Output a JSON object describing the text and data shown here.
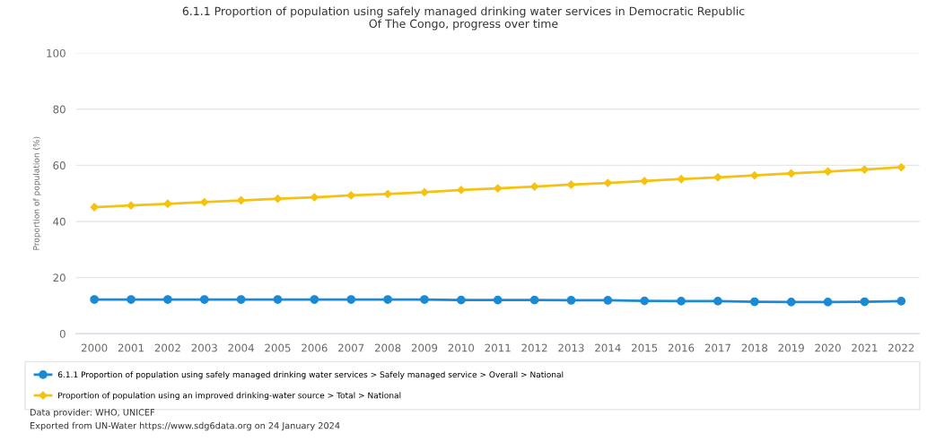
{
  "chart_data": {
    "type": "line",
    "title": "6.1.1 Proportion of population using safely managed drinking water services in Democratic Republic\nOf The Congo, progress over time",
    "ylabel": "Proportion of population (%)",
    "categories": [
      "2000",
      "2001",
      "2002",
      "2003",
      "2004",
      "2005",
      "2006",
      "2007",
      "2008",
      "2009",
      "2010",
      "2011",
      "2012",
      "2013",
      "2014",
      "2015",
      "2016",
      "2017",
      "2018",
      "2019",
      "2020",
      "2021",
      "2022"
    ],
    "series": [
      {
        "name": "6.1.1 Proportion of population using safely managed drinking water services > Safely managed service > Overall > National",
        "color": "#1a8ad4",
        "marker": "circle",
        "values": [
          12.2,
          12.2,
          12.2,
          12.2,
          12.2,
          12.2,
          12.2,
          12.2,
          12.2,
          12.2,
          12.0,
          12.0,
          12.0,
          11.9,
          11.9,
          11.7,
          11.6,
          11.6,
          11.4,
          11.3,
          11.3,
          11.4,
          11.6
        ]
      },
      {
        "name": "Proportion of population using an improved drinking-water source > Total > National",
        "color": "#f5c211",
        "marker": "diamond",
        "values": [
          45.1,
          45.7,
          46.3,
          46.9,
          47.5,
          48.1,
          48.6,
          49.3,
          49.8,
          50.4,
          51.2,
          51.8,
          52.4,
          53.1,
          53.7,
          54.4,
          55.1,
          55.7,
          56.4,
          57.1,
          57.8,
          58.5,
          59.3
        ]
      }
    ],
    "ylim": [
      0,
      100
    ],
    "yticks": [
      0,
      20,
      40,
      60,
      80,
      100
    ],
    "grid": "y",
    "legend": "bottom",
    "line_style": "solid",
    "annotations": [
      "Data provider: WHO, UNICEF",
      "Exported from UN-Water https://www.sdg6data.org on 24 January 2024"
    ]
  }
}
